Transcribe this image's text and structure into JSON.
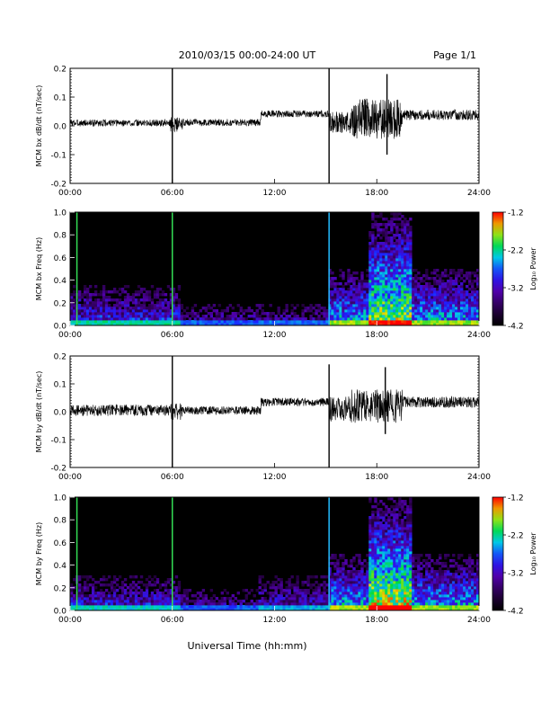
{
  "header": {
    "title": "2010/03/15  00:00-24:00 UT",
    "page": "Page 1/1"
  },
  "footer": {
    "xlabel": "Universal Time (hh:mm)"
  },
  "chart_data": [
    {
      "type": "line",
      "ylabel": "MCM bx dB/dt (nT/sec)",
      "xlim": [
        0,
        24
      ],
      "ylim": [
        -0.2,
        0.2
      ],
      "x_ticks": [
        "00:00",
        "06:00",
        "12:00",
        "18:00",
        "24:00"
      ],
      "y_ticks": [
        "-0.2",
        "-0.1",
        "0.0",
        "0.1",
        "0.2"
      ],
      "segments": [
        {
          "x0": 0,
          "x1": 5.9,
          "mean": 0.01,
          "amp": 0.012
        },
        {
          "x0": 5.9,
          "x1": 6.6,
          "mean": 0.005,
          "amp": 0.025
        },
        {
          "x0": 6.6,
          "x1": 11.2,
          "mean": 0.012,
          "amp": 0.012
        },
        {
          "x0": 11.2,
          "x1": 15.2,
          "mean": 0.042,
          "amp": 0.012
        },
        {
          "x0": 15.2,
          "x1": 16.5,
          "mean": 0.01,
          "amp": 0.04
        },
        {
          "x0": 16.5,
          "x1": 19.5,
          "mean": 0.025,
          "amp": 0.07
        },
        {
          "x0": 19.5,
          "x1": 24,
          "mean": 0.038,
          "amp": 0.018
        }
      ],
      "spikes": [
        {
          "x": 6.0,
          "y0": -0.2,
          "y1": 0.2
        },
        {
          "x": 15.2,
          "y0": -0.2,
          "y1": 0.2
        },
        {
          "x": 18.6,
          "y0": -0.1,
          "y1": 0.18
        }
      ]
    },
    {
      "type": "heatmap",
      "ylabel": "MCM bx Freq (Hz)",
      "xlim": [
        0,
        24
      ],
      "ylim": [
        0,
        1.0
      ],
      "x_ticks": [
        "00:00",
        "06:00",
        "12:00",
        "18:00",
        "24:00"
      ],
      "y_ticks": [
        "0.0",
        "0.2",
        "0.4",
        "0.6",
        "0.8",
        "1.0"
      ],
      "colorbar": {
        "label": "Log₁₀ Power",
        "min": -4.2,
        "max": -1.2,
        "ticks": [
          "-1.2",
          "-2.2",
          "-3.2",
          "-4.2"
        ]
      },
      "vertical_lines": [
        {
          "x": 0.4,
          "color": "#33dd55"
        },
        {
          "x": 6.0,
          "color": "#33dd55"
        },
        {
          "x": 15.2,
          "color": "#22bbff"
        }
      ],
      "activity": [
        {
          "x0": 0,
          "x1": 6.5,
          "level": 0.45,
          "fmax": 0.35
        },
        {
          "x0": 6.5,
          "x1": 11,
          "level": 0.3,
          "fmax": 0.2
        },
        {
          "x0": 11,
          "x1": 15.2,
          "level": 0.32,
          "fmax": 0.2
        },
        {
          "x0": 15.2,
          "x1": 17.5,
          "level": 0.6,
          "fmax": 0.5
        },
        {
          "x0": 17.5,
          "x1": 20,
          "level": 0.8,
          "fmax": 1.0
        },
        {
          "x0": 20,
          "x1": 24,
          "level": 0.6,
          "fmax": 0.5
        }
      ]
    },
    {
      "type": "line",
      "ylabel": "MCM by dB/dt (nT/sec)",
      "xlim": [
        0,
        24
      ],
      "ylim": [
        -0.2,
        0.2
      ],
      "x_ticks": [
        "00:00",
        "06:00",
        "12:00",
        "18:00",
        "24:00"
      ],
      "y_ticks": [
        "-0.2",
        "-0.1",
        "0.0",
        "0.1",
        "0.2"
      ],
      "segments": [
        {
          "x0": 0,
          "x1": 5.9,
          "mean": 0.005,
          "amp": 0.02
        },
        {
          "x0": 5.9,
          "x1": 6.6,
          "mean": 0.0,
          "amp": 0.03
        },
        {
          "x0": 6.6,
          "x1": 11.2,
          "mean": 0.005,
          "amp": 0.015
        },
        {
          "x0": 11.2,
          "x1": 15.2,
          "mean": 0.035,
          "amp": 0.015
        },
        {
          "x0": 15.2,
          "x1": 16.5,
          "mean": 0.01,
          "amp": 0.045
        },
        {
          "x0": 16.5,
          "x1": 19.5,
          "mean": 0.02,
          "amp": 0.06
        },
        {
          "x0": 19.5,
          "x1": 24,
          "mean": 0.035,
          "amp": 0.02
        }
      ],
      "spikes": [
        {
          "x": 6.0,
          "y0": -0.2,
          "y1": 0.2
        },
        {
          "x": 15.2,
          "y0": -0.2,
          "y1": 0.17
        },
        {
          "x": 18.5,
          "y0": -0.08,
          "y1": 0.16
        }
      ]
    },
    {
      "type": "heatmap",
      "ylabel": "MCM by Freq (Hz)",
      "xlim": [
        0,
        24
      ],
      "ylim": [
        0,
        1.0
      ],
      "x_ticks": [
        "00:00",
        "06:00",
        "12:00",
        "18:00",
        "24:00"
      ],
      "y_ticks": [
        "0.0",
        "0.2",
        "0.4",
        "0.6",
        "0.8",
        "1.0"
      ],
      "colorbar": {
        "label": "Log₁₀ Power",
        "min": -4.2,
        "max": -1.2,
        "ticks": [
          "-1.2",
          "-2.2",
          "-3.2",
          "-4.2"
        ]
      },
      "vertical_lines": [
        {
          "x": 0.4,
          "color": "#33dd55"
        },
        {
          "x": 6.0,
          "color": "#33dd55"
        },
        {
          "x": 15.2,
          "color": "#22bbff"
        }
      ],
      "activity": [
        {
          "x0": 0,
          "x1": 6.5,
          "level": 0.42,
          "fmax": 0.3
        },
        {
          "x0": 6.5,
          "x1": 11,
          "level": 0.3,
          "fmax": 0.2
        },
        {
          "x0": 11,
          "x1": 15.2,
          "level": 0.38,
          "fmax": 0.3
        },
        {
          "x0": 15.2,
          "x1": 17.5,
          "level": 0.62,
          "fmax": 0.5
        },
        {
          "x0": 17.5,
          "x1": 20,
          "level": 0.85,
          "fmax": 1.0
        },
        {
          "x0": 20,
          "x1": 24,
          "level": 0.6,
          "fmax": 0.5
        }
      ]
    }
  ]
}
